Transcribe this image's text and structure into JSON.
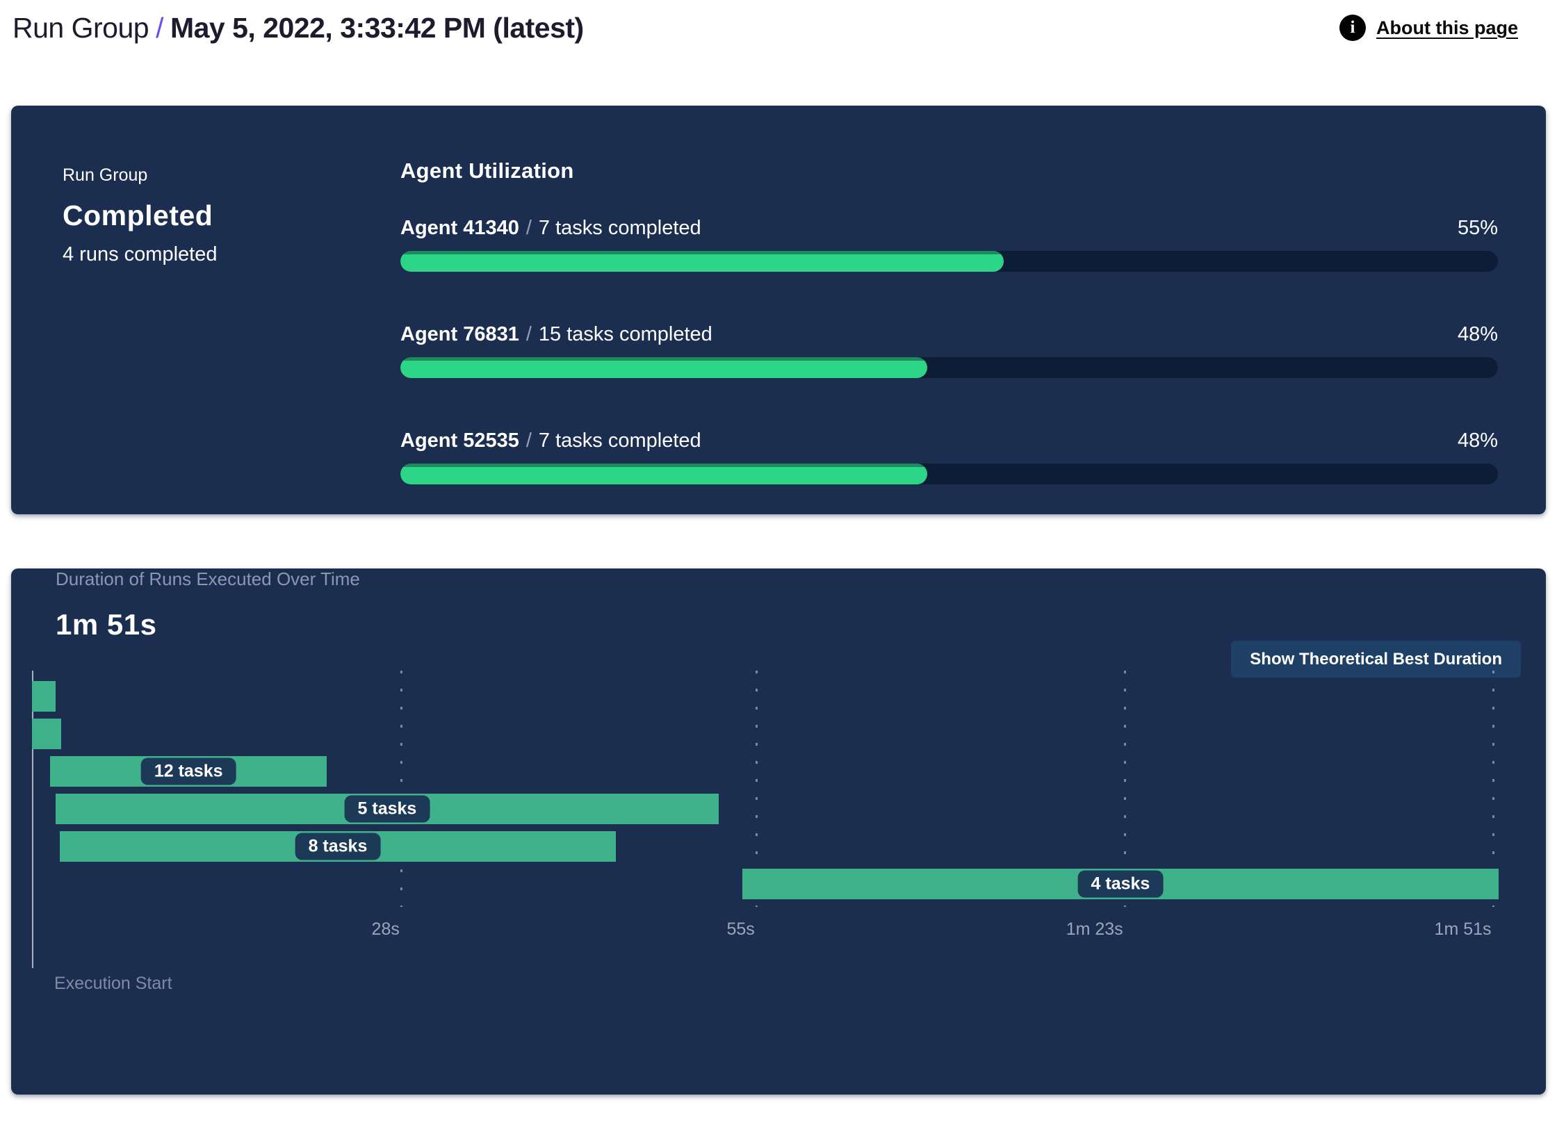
{
  "header": {
    "breadcrumb_root": "Run Group",
    "breadcrumb_separator": "/",
    "title": "May 5, 2022, 3:33:42 PM (latest)",
    "about_link": "About this page",
    "info_icon_glyph": "i"
  },
  "status_panel": {
    "label": "Run Group",
    "status": "Completed",
    "subtitle": "4 runs completed",
    "utilization": {
      "title": "Agent Utilization",
      "separator": "/",
      "agents": [
        {
          "name": "Agent 41340",
          "tasks": "7 tasks completed",
          "percent_label": "55%",
          "percent": 55
        },
        {
          "name": "Agent 76831",
          "tasks": "15 tasks completed",
          "percent_label": "48%",
          "percent": 48
        },
        {
          "name": "Agent 52535",
          "tasks": "7 tasks completed",
          "percent_label": "48%",
          "percent": 48
        }
      ]
    }
  },
  "duration_panel": {
    "title": "Duration of Runs Executed Over Time",
    "total_duration": "1m 51s",
    "button_label": "Show Theoretical Best Duration",
    "axis_label": "Execution Start"
  },
  "chart_data": {
    "type": "gantt",
    "title": "Duration of Runs Executed Over Time",
    "total_duration_label": "1m 51s",
    "time_unit": "seconds",
    "x_min": 0,
    "x_max": 111.5,
    "grid": "dashed-vertical",
    "ticks": [
      {
        "t": 28,
        "label": "28s"
      },
      {
        "t": 55,
        "label": "55s"
      },
      {
        "t": 83,
        "label": "1m 23s"
      },
      {
        "t": 111,
        "label": "1m 51s"
      }
    ],
    "runs": [
      {
        "start": 0,
        "end": 1.8,
        "label": ""
      },
      {
        "start": 0,
        "end": 2.2,
        "label": ""
      },
      {
        "start": 1.4,
        "end": 22.4,
        "label": "12 tasks"
      },
      {
        "start": 1.8,
        "end": 52.2,
        "label": "5 tasks"
      },
      {
        "start": 2.1,
        "end": 44.4,
        "label": "8 tasks"
      },
      {
        "start": 54.0,
        "end": 111.5,
        "label": "4 tasks"
      }
    ]
  },
  "colors": {
    "panel_bg": "#1b2e50",
    "track": "#0e1d36",
    "progress_fill": "#2dd687",
    "progress_fill_edge": "#1e8a60",
    "gantt_bar": "#3fb28b",
    "label_pill_bg": "#1c3a58",
    "button_bg": "#1f4066",
    "accent_slash": "#7348f6",
    "panel_title_gray": "#8b98b0",
    "tick_label": "#9aa6ba",
    "axis_line": "#c3c9d4",
    "gridline": "#9aa7bd",
    "exec_start": "#7e8ba4",
    "info_icon_bg": "#000000",
    "text_dark": "#1c1c2e"
  }
}
